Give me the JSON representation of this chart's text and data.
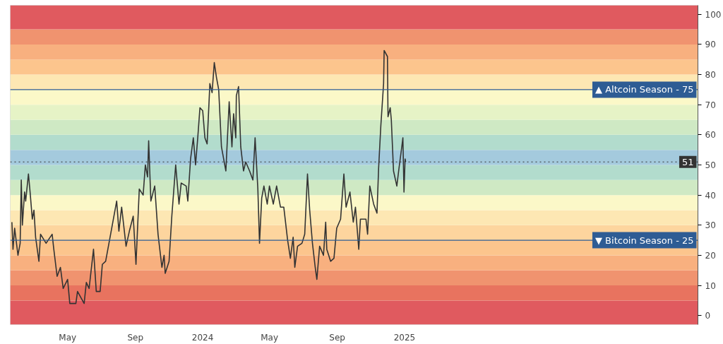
{
  "chart_data": {
    "type": "line",
    "x": [
      "2023-01-20",
      "2023-01-22",
      "2023-01-25",
      "2023-01-29",
      "2023-01-31",
      "2023-02-04",
      "2023-02-06",
      "2023-02-08",
      "2023-02-12",
      "2023-02-14",
      "2023-02-19",
      "2023-02-22",
      "2023-02-26",
      "2023-03-01",
      "2023-03-04",
      "2023-03-10",
      "2023-03-13",
      "2023-03-23",
      "2023-04-03",
      "2023-04-06",
      "2023-04-12",
      "2023-04-18",
      "2023-04-23",
      "2023-05-01",
      "2023-05-05",
      "2023-05-16",
      "2023-05-19",
      "2023-05-31",
      "2023-06-04",
      "2023-06-09",
      "2023-06-17",
      "2023-06-22",
      "2023-06-29",
      "2023-07-03",
      "2023-07-09",
      "2023-07-20",
      "2023-07-29",
      "2023-08-02",
      "2023-08-07",
      "2023-08-15",
      "2023-08-21",
      "2023-08-28",
      "2023-09-02",
      "2023-09-08",
      "2023-09-15",
      "2023-09-19",
      "2023-09-23",
      "2023-09-25",
      "2023-09-29",
      "2023-10-06",
      "2023-10-12",
      "2023-10-19",
      "2023-10-23",
      "2023-10-25",
      "2023-11-01",
      "2023-11-06",
      "2023-11-13",
      "2023-11-19",
      "2023-11-23",
      "2023-12-02",
      "2023-12-05",
      "2023-12-10",
      "2023-12-15",
      "2023-12-19",
      "2023-12-23",
      "2023-12-27",
      "2024-01-01",
      "2024-01-05",
      "2024-01-09",
      "2024-01-14",
      "2024-01-18",
      "2024-01-22",
      "2024-01-26",
      "2024-01-30",
      "2024-02-04",
      "2024-02-12",
      "2024-02-18",
      "2024-02-23",
      "2024-02-26",
      "2024-03-01",
      "2024-03-02",
      "2024-03-06",
      "2024-03-10",
      "2024-03-15",
      "2024-03-19",
      "2024-03-26",
      "2024-04-01",
      "2024-04-05",
      "2024-04-10",
      "2024-04-13",
      "2024-04-17",
      "2024-04-21",
      "2024-04-27",
      "2024-05-01",
      "2024-05-08",
      "2024-05-14",
      "2024-05-21",
      "2024-05-27",
      "2024-06-03",
      "2024-06-08",
      "2024-06-13",
      "2024-06-16",
      "2024-06-21",
      "2024-06-29",
      "2024-07-04",
      "2024-07-09",
      "2024-07-13",
      "2024-07-18",
      "2024-07-23",
      "2024-07-26",
      "2024-07-31",
      "2024-08-07",
      "2024-08-11",
      "2024-08-13",
      "2024-08-20",
      "2024-08-26",
      "2024-08-31",
      "2024-09-07",
      "2024-09-13",
      "2024-09-17",
      "2024-09-24",
      "2024-09-30",
      "2024-10-04",
      "2024-10-10",
      "2024-10-13",
      "2024-10-23",
      "2024-10-26",
      "2024-10-30",
      "2024-11-06",
      "2024-11-12",
      "2024-11-15",
      "2024-11-19",
      "2024-11-24",
      "2024-11-25",
      "2024-12-01",
      "2024-12-02",
      "2024-12-06",
      "2024-12-08",
      "2024-12-12",
      "2024-12-18",
      "2024-12-22",
      "2024-12-27",
      "2024-12-29",
      "2024-12-31",
      "2025-01-02",
      "2025-01-03"
    ],
    "series": [
      {
        "color": "#333333",
        "values": [
          31,
          22,
          29,
          23,
          20,
          24,
          45,
          30,
          41,
          38,
          47,
          41,
          32,
          35,
          26,
          18,
          27,
          24,
          27,
          22,
          13,
          16,
          9,
          12,
          4,
          4,
          8,
          4,
          11,
          9,
          22,
          8,
          8,
          17,
          18,
          29,
          38,
          28,
          36,
          23,
          28,
          33,
          17,
          42,
          40,
          50,
          46,
          58,
          38,
          43,
          27,
          16,
          20,
          14,
          18,
          33,
          50,
          37,
          44,
          43,
          38,
          52,
          59,
          50,
          59,
          69,
          68,
          59,
          57,
          77,
          74,
          84,
          79,
          75,
          56,
          48,
          71,
          56,
          67,
          59,
          73,
          76,
          56,
          48,
          51,
          48,
          45,
          59,
          42,
          24,
          39,
          43,
          37,
          43,
          37,
          43,
          36,
          36,
          25,
          19,
          26,
          16,
          23,
          24,
          27,
          47,
          35,
          24,
          16,
          12,
          23,
          20,
          31,
          22,
          18,
          19,
          29,
          32,
          47,
          36,
          41,
          31,
          36,
          22,
          32,
          32,
          27,
          43,
          37,
          34,
          49,
          63,
          77,
          88,
          86,
          66,
          69,
          65,
          48,
          43,
          49,
          56,
          59,
          41,
          52,
          51
        ]
      }
    ],
    "xlim": [
      "2023-01-17",
      "2026-06-17"
    ],
    "xticks": [
      {
        "value": "2023-05-01",
        "label": "May"
      },
      {
        "value": "2023-09-01",
        "label": "Sep"
      },
      {
        "value": "2024-01-01",
        "label": "2024"
      },
      {
        "value": "2024-05-01",
        "label": "May"
      },
      {
        "value": "2024-09-01",
        "label": "Sep"
      },
      {
        "value": "2025-01-01",
        "label": "2025"
      }
    ],
    "ylim": [
      -3,
      103
    ],
    "yticks": [
      0,
      10,
      20,
      30,
      40,
      50,
      60,
      70,
      80,
      90,
      100
    ],
    "grid": false,
    "line_style": "solid",
    "marker": "none",
    "ref_lines": [
      {
        "axis": "y",
        "value": 75,
        "label": "▲ Altcoin Season - 75",
        "color": "#2e5c94",
        "line_style": "solid"
      },
      {
        "axis": "y",
        "value": 25,
        "label": "▼ Bitcoin Season - 25",
        "color": "#2e5c94",
        "line_style": "solid"
      },
      {
        "axis": "y",
        "value": 51,
        "label": "51",
        "color": "#333333",
        "line_style": "dotted"
      }
    ],
    "bands": [
      {
        "axis": "y",
        "from": -3,
        "to": 5,
        "color": "#e05a5f"
      },
      {
        "axis": "y",
        "from": 5,
        "to": 10,
        "color": "#e8735f"
      },
      {
        "axis": "y",
        "from": 10,
        "to": 15,
        "color": "#f0936f"
      },
      {
        "axis": "y",
        "from": 15,
        "to": 20,
        "color": "#f8b07f"
      },
      {
        "axis": "y",
        "from": 20,
        "to": 25,
        "color": "#fcc58d"
      },
      {
        "axis": "y",
        "from": 25,
        "to": 30,
        "color": "#fdd59e"
      },
      {
        "axis": "y",
        "from": 30,
        "to": 35,
        "color": "#fde7b3"
      },
      {
        "axis": "y",
        "from": 35,
        "to": 40,
        "color": "#fbf8c8"
      },
      {
        "axis": "y",
        "from": 40,
        "to": 45,
        "color": "#cfe9c4"
      },
      {
        "axis": "y",
        "from": 45,
        "to": 50,
        "color": "#b2dccd"
      },
      {
        "axis": "y",
        "from": 50,
        "to": 55,
        "color": "#a4cadd"
      },
      {
        "axis": "y",
        "from": 55,
        "to": 60,
        "color": "#b2dccd"
      },
      {
        "axis": "y",
        "from": 60,
        "to": 65,
        "color": "#cfe9c4"
      },
      {
        "axis": "y",
        "from": 65,
        "to": 70,
        "color": "#e6f3c6"
      },
      {
        "axis": "y",
        "from": 70,
        "to": 75,
        "color": "#fbf8c8"
      },
      {
        "axis": "y",
        "from": 75,
        "to": 80,
        "color": "#fde7b3"
      },
      {
        "axis": "y",
        "from": 80,
        "to": 85,
        "color": "#fcc58d"
      },
      {
        "axis": "y",
        "from": 85,
        "to": 90,
        "color": "#f8b07f"
      },
      {
        "axis": "y",
        "from": 90,
        "to": 95,
        "color": "#f0936f"
      },
      {
        "axis": "y",
        "from": 95,
        "to": 103,
        "color": "#e05a5f"
      }
    ]
  }
}
